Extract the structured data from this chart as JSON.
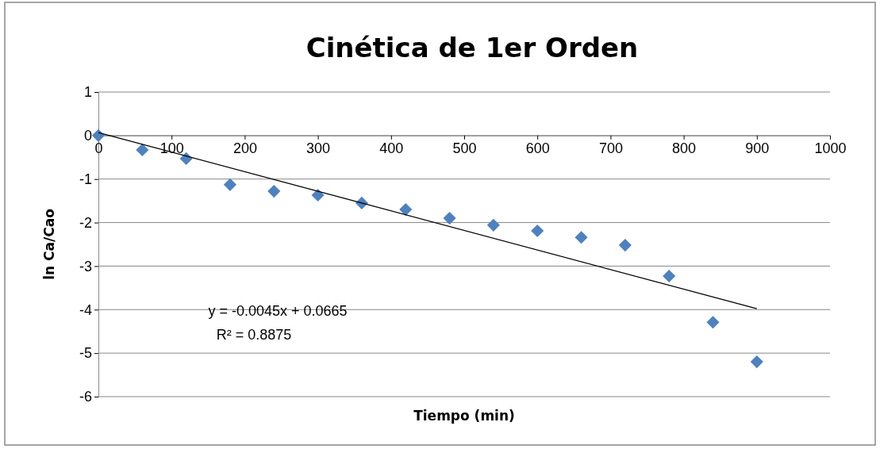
{
  "chart_data": {
    "type": "scatter",
    "title": "Cinética de 1er Orden",
    "xlabel": "Tiempo (min)",
    "ylabel": "ln Ca/Cao",
    "xlim": [
      0,
      1000
    ],
    "xticks": [
      0,
      100,
      200,
      300,
      400,
      500,
      600,
      700,
      800,
      900,
      1000
    ],
    "ylim": [
      -6,
      1
    ],
    "yticks": [
      -6,
      -5,
      -4,
      -3,
      -2,
      -1,
      0,
      1
    ],
    "grid": "y",
    "marker": "diamond",
    "series": [
      {
        "type": "scatter",
        "color": "#4f81bd",
        "x": [
          0,
          60,
          120,
          180,
          240,
          300,
          360,
          420,
          480,
          540,
          600,
          660,
          720,
          780,
          840,
          900
        ],
        "values": [
          0,
          -0.33,
          -0.53,
          -1.13,
          -1.28,
          -1.37,
          -1.55,
          -1.7,
          -1.9,
          -2.06,
          -2.19,
          -2.34,
          -2.52,
          -3.23,
          -4.29,
          -5.2
        ]
      },
      {
        "type": "line",
        "color": "#000000",
        "marker": "none",
        "x": [
          0,
          900
        ],
        "values": [
          0.07,
          -3.98
        ]
      }
    ],
    "annotations": [
      "y = -0.0045x + 0.0665",
      "R² = 0.8875"
    ]
  }
}
